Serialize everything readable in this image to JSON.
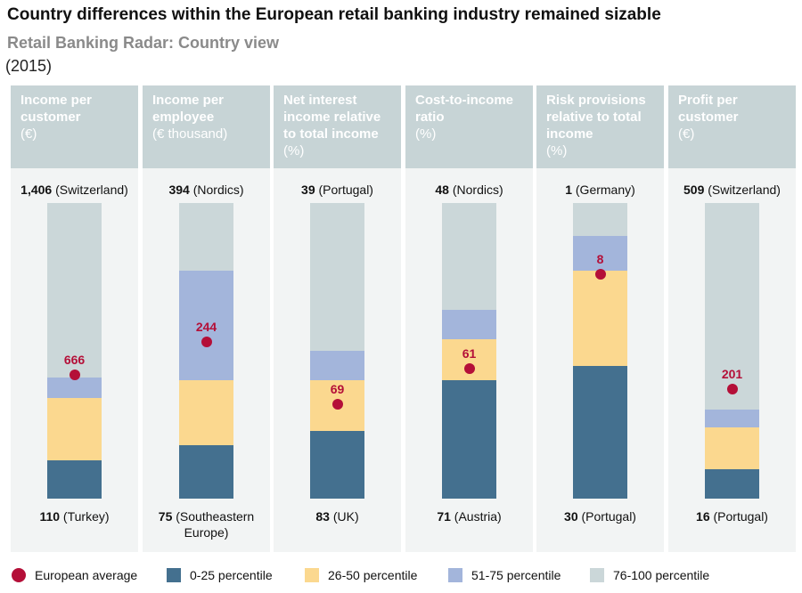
{
  "title": "Country differences within the European retail banking industry remained sizable",
  "subtitle": "Retail Banking Radar: Country view",
  "year": "(2015)",
  "colors": {
    "q1": "#44708f",
    "q2": "#fbd88f",
    "q3": "#a3b5db",
    "q4": "#cbd7d9",
    "avg": "#b40f38"
  },
  "legend": {
    "average": "European average",
    "q1": "0-25 percentile",
    "q2": "26-50 percentile",
    "q3": "51-75 percentile",
    "q4": "76-100 percentile"
  },
  "chart_data": {
    "type": "bar",
    "title": "Retail Banking Radar: Country view",
    "note": "Stacked percentile bars from min (bottom) to max (top); dot marks the European average",
    "panels": [
      {
        "key": "income-per-customer",
        "header": [
          "Income per",
          "customer"
        ],
        "unit": "(€)",
        "max": {
          "value": "1,406",
          "country": "(Switzerland)"
        },
        "min": {
          "value": "110",
          "country": "(Turkey)"
        },
        "average": "666",
        "segments": [
          0.13,
          0.21,
          0.07,
          0.59
        ],
        "avg_position": 0.42
      },
      {
        "key": "income-per-employee",
        "header": [
          "Income per",
          "employee"
        ],
        "unit": "(€ thousand)",
        "max": {
          "value": "394",
          "country": "(Nordics)"
        },
        "min": {
          "value": "75",
          "country": "(Southeastern",
          "country2": "Europe)"
        },
        "average": "244",
        "segments": [
          0.18,
          0.22,
          0.37,
          0.23
        ],
        "avg_position": 0.53
      },
      {
        "key": "net-interest-income",
        "header": [
          "Net interest",
          "income relative",
          "to total income"
        ],
        "unit": "(%)",
        "max": {
          "value": "39",
          "country": "(Portugal)"
        },
        "min": {
          "value": "83",
          "country": "(UK)"
        },
        "average": "69",
        "segments": [
          0.23,
          0.17,
          0.1,
          0.5
        ],
        "avg_position": 0.32
      },
      {
        "key": "cost-to-income",
        "header": [
          "Cost-to-income",
          "ratio"
        ],
        "unit": "(%)",
        "max": {
          "value": "48",
          "country": "(Nordics)"
        },
        "min": {
          "value": "71",
          "country": "(Austria)"
        },
        "average": "61",
        "segments": [
          0.4,
          0.14,
          0.1,
          0.36
        ],
        "avg_position": 0.44
      },
      {
        "key": "risk-provisions",
        "header": [
          "Risk provisions",
          "relative to total",
          "income"
        ],
        "unit": "(%)",
        "max": {
          "value": "1",
          "country": "(Germany)"
        },
        "min": {
          "value": "30",
          "country": "(Portugal)"
        },
        "average": "8",
        "segments": [
          0.45,
          0.32,
          0.12,
          0.11
        ],
        "avg_position": 0.76
      },
      {
        "key": "profit-per-customer",
        "header": [
          "Profit per",
          "customer"
        ],
        "unit": "(€)",
        "max": {
          "value": "509",
          "country": "(Switzerland)"
        },
        "min": {
          "value": "16",
          "country": "(Portugal)"
        },
        "average": "201",
        "segments": [
          0.1,
          0.14,
          0.06,
          0.7
        ],
        "avg_position": 0.37
      }
    ]
  }
}
